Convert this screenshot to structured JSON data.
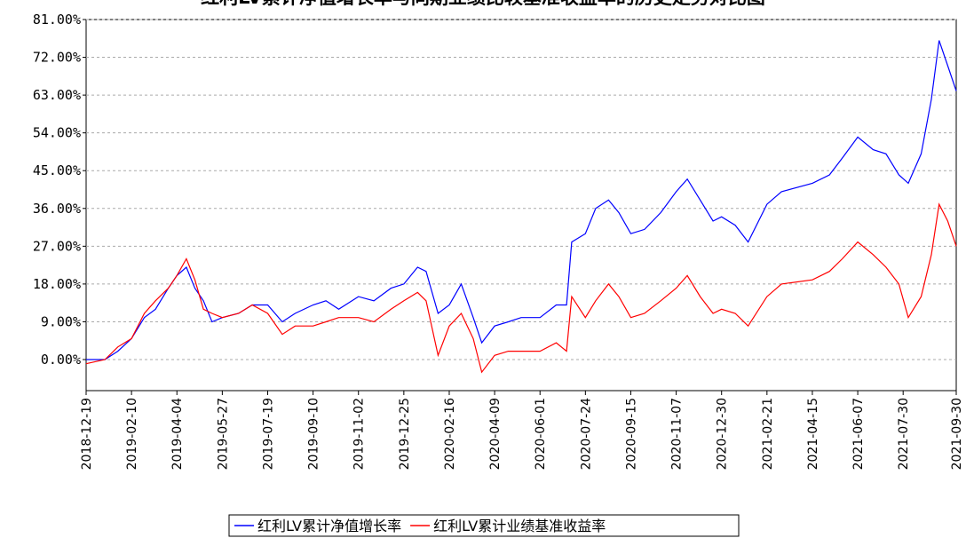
{
  "chart_data": {
    "type": "line",
    "title": "红利LV累计净值增长率与同期业绩比较基准收益率的历史走势对比图",
    "x": [
      "2018-12-19",
      "2019-01-10",
      "2019-01-25",
      "2019-02-10",
      "2019-02-25",
      "2019-03-10",
      "2019-03-25",
      "2019-04-04",
      "2019-04-15",
      "2019-04-25",
      "2019-05-05",
      "2019-05-15",
      "2019-05-27",
      "2019-06-15",
      "2019-07-01",
      "2019-07-19",
      "2019-08-05",
      "2019-08-20",
      "2019-09-10",
      "2019-09-25",
      "2019-10-10",
      "2019-11-02",
      "2019-11-20",
      "2019-12-10",
      "2019-12-25",
      "2020-01-10",
      "2020-01-20",
      "2020-02-03",
      "2020-02-16",
      "2020-03-01",
      "2020-03-15",
      "2020-03-25",
      "2020-04-09",
      "2020-04-25",
      "2020-05-10",
      "2020-06-01",
      "2020-06-20",
      "2020-07-02",
      "2020-07-08",
      "2020-07-24",
      "2020-08-05",
      "2020-08-20",
      "2020-09-01",
      "2020-09-15",
      "2020-10-01",
      "2020-10-20",
      "2020-11-07",
      "2020-11-20",
      "2020-12-05",
      "2020-12-20",
      "2020-12-30",
      "2021-01-15",
      "2021-01-30",
      "2021-02-21",
      "2021-03-10",
      "2021-04-15",
      "2021-05-05",
      "2021-05-20",
      "2021-06-07",
      "2021-06-25",
      "2021-07-10",
      "2021-07-25",
      "2021-08-05",
      "2021-08-20",
      "2021-09-01",
      "2021-09-10",
      "2021-09-20",
      "2021-09-30"
    ],
    "series": [
      {
        "name": "红利LV累计净值增长率",
        "color": "#0000ff",
        "values": [
          0,
          0,
          2,
          5,
          10,
          12,
          17,
          20,
          22,
          17,
          14,
          9,
          10,
          11,
          13,
          13,
          9,
          11,
          13,
          14,
          12,
          15,
          14,
          17,
          18,
          22,
          21,
          11,
          13,
          18,
          10,
          4,
          8,
          9,
          10,
          10,
          13,
          13,
          28,
          30,
          36,
          38,
          35,
          30,
          31,
          35,
          40,
          43,
          38,
          33,
          34,
          32,
          28,
          37,
          40,
          42,
          44,
          48,
          53,
          50,
          49,
          44,
          42,
          49,
          62,
          76,
          70,
          64
        ]
      },
      {
        "name": "红利LV累计业绩基准收益率",
        "color": "#ff0000",
        "values": [
          -1,
          0,
          3,
          5,
          11,
          14,
          17,
          20,
          24,
          19,
          12,
          11,
          10,
          11,
          13,
          11,
          6,
          8,
          8,
          9,
          10,
          10,
          9,
          12,
          14,
          16,
          14,
          1,
          8,
          11,
          5,
          -3,
          1,
          2,
          2,
          2,
          4,
          2,
          15,
          10,
          14,
          18,
          15,
          10,
          11,
          14,
          17,
          20,
          15,
          11,
          12,
          11,
          8,
          15,
          18,
          19,
          21,
          24,
          28,
          25,
          22,
          18,
          10,
          15,
          25,
          37,
          33,
          27
        ]
      }
    ],
    "xlim": [
      "2018-12-19",
      "2021-09-30"
    ],
    "xticks": [
      "2018-12-19",
      "2019-02-10",
      "2019-04-04",
      "2019-05-27",
      "2019-07-19",
      "2019-09-10",
      "2019-11-02",
      "2019-12-25",
      "2020-02-16",
      "2020-04-09",
      "2020-06-01",
      "2020-07-24",
      "2020-09-15",
      "2020-11-07",
      "2020-12-30",
      "2021-02-21",
      "2021-04-15",
      "2021-06-07",
      "2021-07-30",
      "2021-09-30"
    ],
    "ylim": [
      -7.4,
      81
    ],
    "yticks": [
      {
        "value": 0,
        "label": "0.00%"
      },
      {
        "value": 9,
        "label": "9.00%"
      },
      {
        "value": 18,
        "label": "18.00%"
      },
      {
        "value": 27,
        "label": "27.00%"
      },
      {
        "value": 36,
        "label": "36.00%"
      },
      {
        "value": 45,
        "label": "45.00%"
      },
      {
        "value": 54,
        "label": "54.00%"
      },
      {
        "value": 63,
        "label": "63.00%"
      },
      {
        "value": 72,
        "label": "72.00%"
      },
      {
        "value": 81,
        "label": "81.00%"
      }
    ],
    "grid": true
  }
}
